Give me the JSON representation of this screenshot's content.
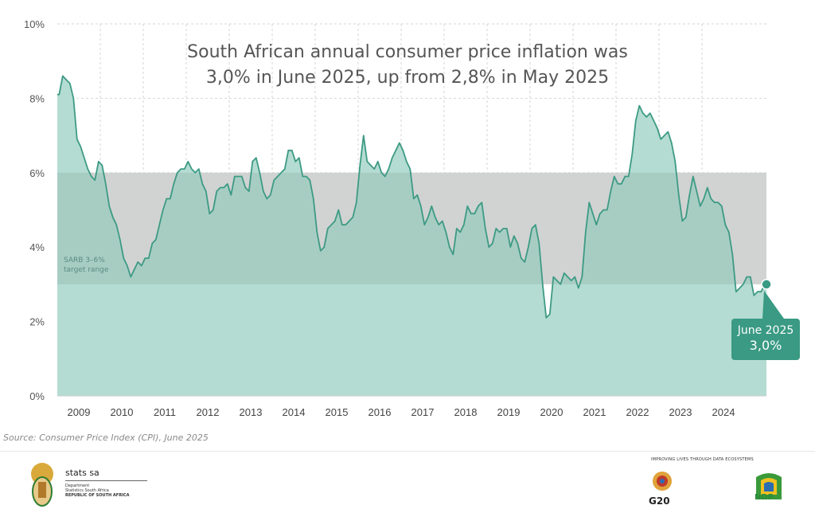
{
  "chart_data": {
    "type": "area",
    "title": "South African annual consumer price inflation was\n3,0% in June 2025, up from 2,8% in May 2025",
    "title_lines": [
      "South African annual consumer price inflation was",
      "3,0% in June 2025, up from 2,8% in May 2025"
    ],
    "xlabel": "",
    "ylabel": "",
    "ylim": [
      0,
      10
    ],
    "y_ticks": [
      "0%",
      "2%",
      "4%",
      "6%",
      "8%",
      "10%"
    ],
    "x_ticks": [
      "2009",
      "2010",
      "2011",
      "2012",
      "2013",
      "2014",
      "2015",
      "2016",
      "2017",
      "2018",
      "2019",
      "2020",
      "2021",
      "2022",
      "2023",
      "2024"
    ],
    "x_start": "2009-01",
    "x_end": "2025-06",
    "frequency": "monthly",
    "grid": true,
    "target_band": {
      "low": 3,
      "high": 6,
      "label_lines": [
        "SARB 3–6%",
        "target range"
      ]
    },
    "values": [
      8.1,
      8.6,
      8.5,
      8.4,
      8.0,
      6.9,
      6.7,
      6.4,
      6.1,
      5.9,
      5.8,
      6.3,
      6.2,
      5.7,
      5.1,
      4.8,
      4.6,
      4.2,
      3.7,
      3.5,
      3.2,
      3.4,
      3.6,
      3.5,
      3.7,
      3.7,
      4.1,
      4.2,
      4.6,
      5.0,
      5.3,
      5.3,
      5.7,
      6.0,
      6.1,
      6.1,
      6.3,
      6.1,
      6.0,
      6.1,
      5.7,
      5.5,
      4.9,
      5.0,
      5.5,
      5.6,
      5.6,
      5.7,
      5.4,
      5.9,
      5.9,
      5.9,
      5.6,
      5.5,
      6.3,
      6.4,
      6.0,
      5.5,
      5.3,
      5.4,
      5.8,
      5.9,
      6.0,
      6.1,
      6.6,
      6.6,
      6.3,
      6.4,
      5.9,
      5.9,
      5.8,
      5.3,
      4.4,
      3.9,
      4.0,
      4.5,
      4.6,
      4.7,
      5.0,
      4.6,
      4.6,
      4.7,
      4.8,
      5.2,
      6.2,
      7.0,
      6.3,
      6.2,
      6.1,
      6.3,
      6.0,
      5.9,
      6.1,
      6.4,
      6.6,
      6.8,
      6.6,
      6.3,
      6.1,
      5.3,
      5.4,
      5.1,
      4.6,
      4.8,
      5.1,
      4.8,
      4.6,
      4.7,
      4.4,
      4.0,
      3.8,
      4.5,
      4.4,
      4.6,
      5.1,
      4.9,
      4.9,
      5.1,
      5.2,
      4.5,
      4.0,
      4.1,
      4.5,
      4.4,
      4.5,
      4.5,
      4.0,
      4.3,
      4.1,
      3.7,
      3.6,
      4.0,
      4.5,
      4.6,
      4.1,
      3.0,
      2.1,
      2.2,
      3.2,
      3.1,
      3.0,
      3.3,
      3.2,
      3.1,
      3.2,
      2.9,
      3.2,
      4.4,
      5.2,
      4.9,
      4.6,
      4.9,
      5.0,
      5.0,
      5.5,
      5.9,
      5.7,
      5.7,
      5.9,
      5.9,
      6.5,
      7.4,
      7.8,
      7.6,
      7.5,
      7.6,
      7.4,
      7.2,
      6.9,
      7.0,
      7.1,
      6.8,
      6.3,
      5.4,
      4.7,
      4.8,
      5.4,
      5.9,
      5.5,
      5.1,
      5.3,
      5.6,
      5.3,
      5.2,
      5.2,
      5.1,
      4.6,
      4.4,
      3.8,
      2.8,
      2.9,
      3.0,
      3.2,
      3.2,
      2.7,
      2.8,
      2.8,
      3.0
    ],
    "annotation": {
      "lines": [
        "June 2025",
        "3,0%"
      ]
    },
    "colors": {
      "line": "#3d9a84",
      "fill": "#b4dcd2",
      "band": "#e4e4e4",
      "callout": "#3a9a84"
    }
  },
  "source": "Source: Consumer Price Index (CPI), June 2025",
  "footer": {
    "logo_lines": [
      "stats sa",
      "Department",
      "Statistics South Africa",
      "REPUBLIC OF SOUTH AFRICA"
    ],
    "tagline": "IMPROVING LIVES THROUGH DATA ECOSYSTEMS",
    "g20": "G20",
    "ndp": "NDP"
  }
}
